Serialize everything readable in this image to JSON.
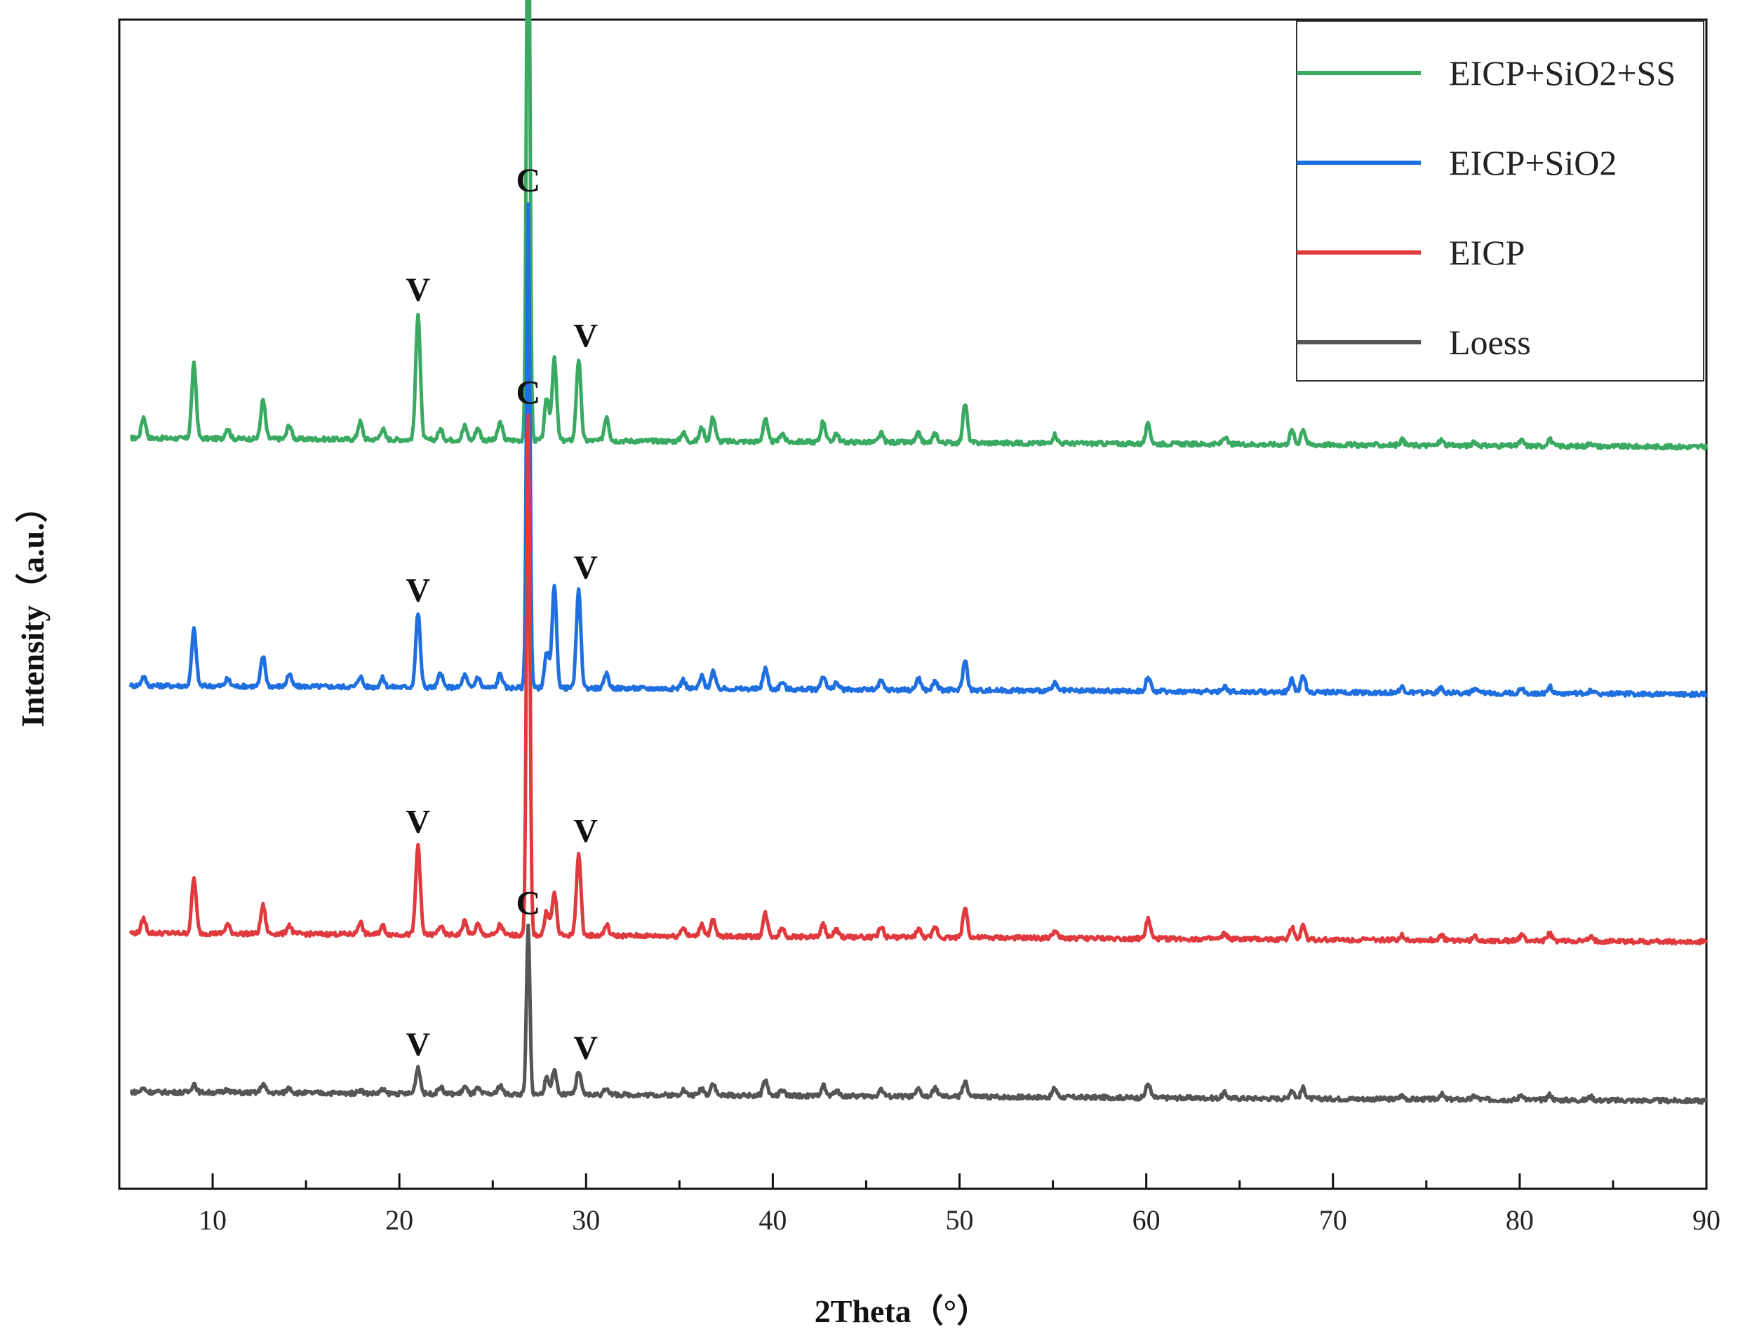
{
  "chart_data": {
    "type": "line",
    "xlabel": "2Theta（°）",
    "ylabel": "Intensity（a.u.）",
    "xlim": [
      5,
      90
    ],
    "x_ticks": [
      10,
      20,
      30,
      40,
      50,
      60,
      70,
      80,
      90
    ],
    "y_ticks": [],
    "grid": false,
    "legend_position": "top-right",
    "line_width": 5,
    "peak_labels": [
      {
        "two_theta": 21.0,
        "label": "V"
      },
      {
        "two_theta": 26.9,
        "label": "C"
      },
      {
        "two_theta": 29.6,
        "label": "V"
      }
    ],
    "peaks_2theta": [
      6.3,
      9.0,
      10.8,
      12.7,
      14.1,
      17.9,
      19.1,
      21.0,
      22.2,
      23.5,
      24.2,
      25.4,
      26.9,
      27.9,
      28.3,
      29.6,
      31.1,
      35.2,
      36.2,
      36.8,
      39.6,
      40.5,
      42.7,
      43.4,
      45.8,
      47.8,
      48.7,
      50.3,
      55.1,
      60.1,
      64.2,
      67.8,
      68.4,
      73.7,
      75.8,
      77.6,
      80.1,
      81.6,
      83.8
    ],
    "series": [
      {
        "name": "EICP+SiO2+SS",
        "color": "#3aaa63",
        "offset": 3.7,
        "intensities": [
          0.12,
          0.42,
          0.06,
          0.22,
          0.08,
          0.1,
          0.06,
          0.72,
          0.06,
          0.08,
          0.07,
          0.1,
          3.55,
          0.24,
          0.46,
          0.46,
          0.14,
          0.05,
          0.08,
          0.14,
          0.13,
          0.05,
          0.12,
          0.05,
          0.05,
          0.05,
          0.05,
          0.22,
          0.05,
          0.11,
          0.04,
          0.08,
          0.09,
          0.03,
          0.03,
          0.02,
          0.03,
          0.04,
          0.02
        ]
      },
      {
        "name": "EICP+SiO2",
        "color": "#1f6fe0",
        "offset": 2.3,
        "intensities": [
          0.05,
          0.32,
          0.04,
          0.17,
          0.07,
          0.06,
          0.05,
          0.42,
          0.08,
          0.07,
          0.06,
          0.08,
          2.74,
          0.2,
          0.57,
          0.55,
          0.08,
          0.05,
          0.07,
          0.1,
          0.12,
          0.04,
          0.08,
          0.04,
          0.05,
          0.07,
          0.05,
          0.17,
          0.04,
          0.08,
          0.03,
          0.07,
          0.09,
          0.03,
          0.03,
          0.02,
          0.03,
          0.04,
          0.02
        ]
      },
      {
        "name": "EICP",
        "color": "#e03a3e",
        "offset": 0.9,
        "intensities": [
          0.08,
          0.31,
          0.05,
          0.16,
          0.05,
          0.07,
          0.05,
          0.51,
          0.05,
          0.08,
          0.06,
          0.06,
          2.94,
          0.14,
          0.24,
          0.46,
          0.06,
          0.05,
          0.07,
          0.09,
          0.13,
          0.05,
          0.07,
          0.04,
          0.06,
          0.05,
          0.06,
          0.17,
          0.04,
          0.11,
          0.03,
          0.07,
          0.08,
          0.03,
          0.03,
          0.02,
          0.03,
          0.04,
          0.02
        ]
      },
      {
        "name": "Loess",
        "color": "#555555",
        "offset": 0.0,
        "intensities": [
          0.02,
          0.05,
          0.02,
          0.05,
          0.03,
          0.02,
          0.02,
          0.15,
          0.04,
          0.04,
          0.03,
          0.05,
          0.95,
          0.09,
          0.14,
          0.13,
          0.04,
          0.03,
          0.04,
          0.07,
          0.09,
          0.03,
          0.06,
          0.03,
          0.04,
          0.04,
          0.05,
          0.09,
          0.05,
          0.08,
          0.03,
          0.05,
          0.06,
          0.02,
          0.03,
          0.02,
          0.03,
          0.03,
          0.02
        ]
      }
    ]
  }
}
